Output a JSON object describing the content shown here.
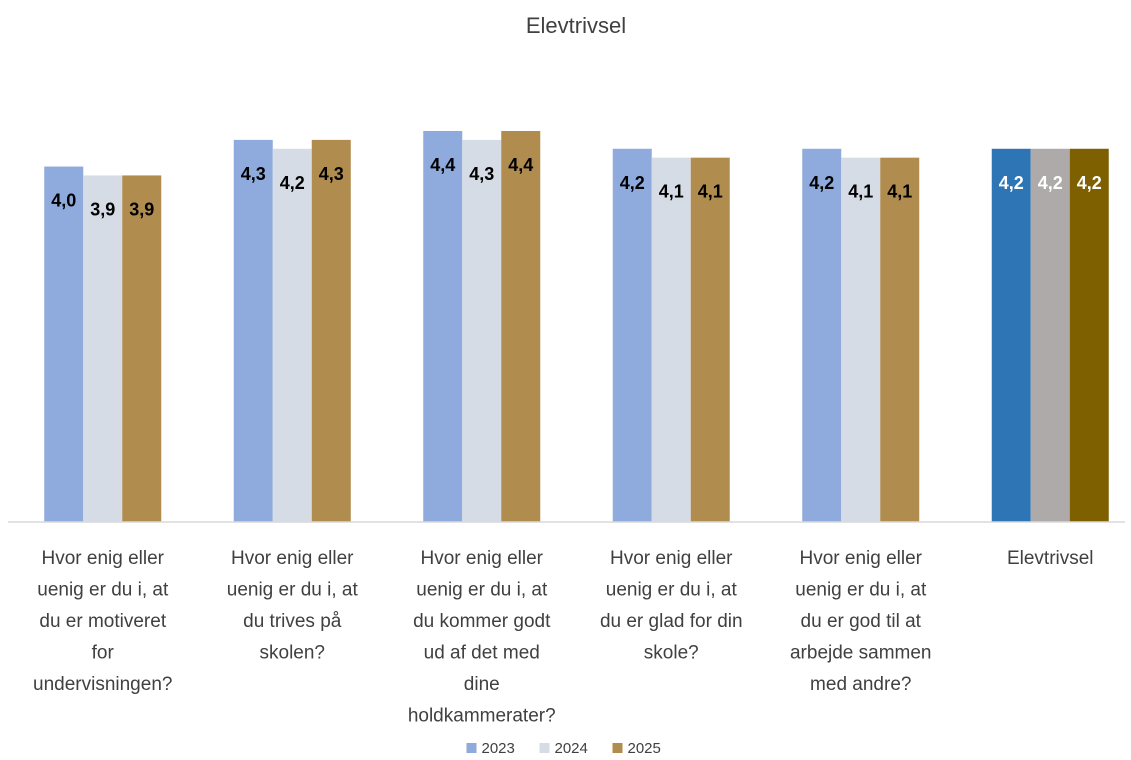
{
  "chart_data": {
    "type": "bar",
    "title": "Elevtrivsel",
    "categories": [
      [
        "Hvor enig eller",
        "uenig er du i, at",
        "du er motiveret",
        "for",
        "undervisningen?"
      ],
      [
        "Hvor enig eller",
        "uenig er du i, at",
        "du trives på",
        "skolen?"
      ],
      [
        "Hvor enig eller",
        "uenig er du i, at",
        "du kommer godt",
        "ud af det med",
        "dine",
        "holdkammerater?"
      ],
      [
        "Hvor enig eller",
        "uenig er du i, at",
        "du er glad for din",
        "skole?"
      ],
      [
        "Hvor enig eller",
        "uenig er du i, at",
        "du er god til at",
        "arbejde sammen",
        "med andre?"
      ],
      [
        "Elevtrivsel"
      ]
    ],
    "series": [
      {
        "name": "2023",
        "values": [
          4.0,
          4.3,
          4.4,
          4.2,
          4.2,
          4.2
        ],
        "labels": [
          "4,0",
          "4,3",
          "4,4",
          "4,2",
          "4,2",
          "4,2"
        ],
        "color": "#8faadc",
        "highlight_color": "#2e75b6"
      },
      {
        "name": "2024",
        "values": [
          3.9,
          4.2,
          4.3,
          4.1,
          4.1,
          4.2
        ],
        "labels": [
          "3,9",
          "4,2",
          "4,3",
          "4,1",
          "4,1",
          "4,2"
        ],
        "color": "#d6dce5",
        "highlight_color": "#aeaaaa"
      },
      {
        "name": "2025",
        "values": [
          3.9,
          4.3,
          4.4,
          4.1,
          4.1,
          4.2
        ],
        "labels": [
          "3,9",
          "4,3",
          "4,4",
          "4,1",
          "4,1",
          "4,2"
        ],
        "color": "#b08c4e",
        "highlight_color": "#7f6000"
      }
    ],
    "ylim": [
      0,
      4.4
    ],
    "legend_position": "bottom",
    "grid": false,
    "highlighted_category_index": 5
  }
}
